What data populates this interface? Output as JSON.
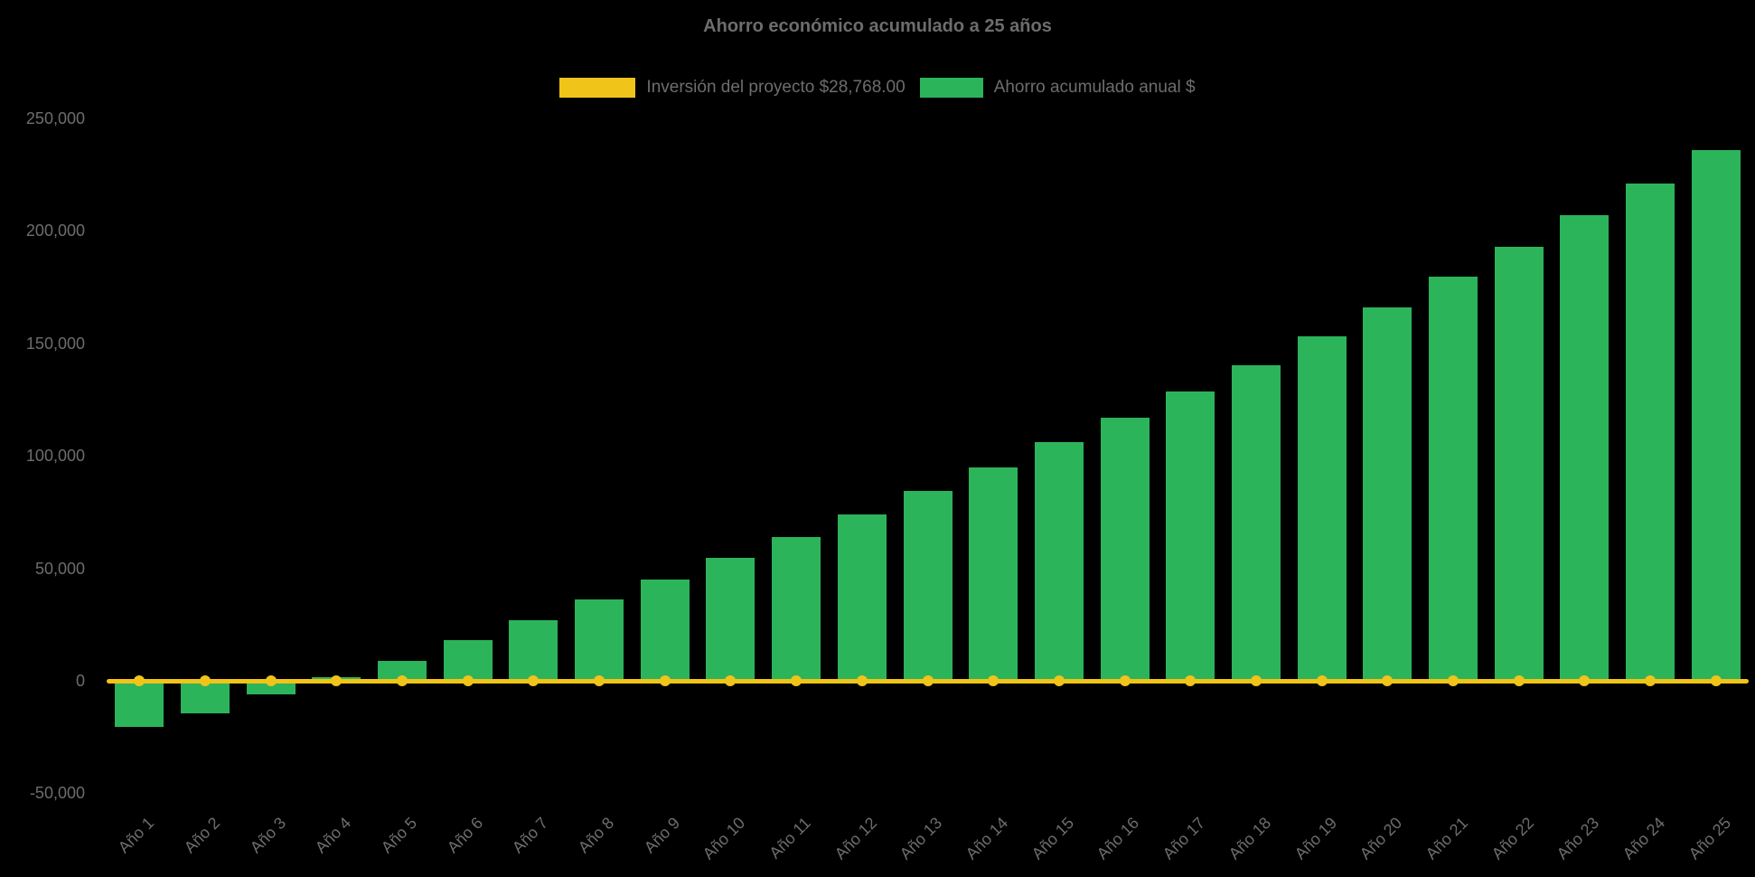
{
  "title": "Ahorro económico acumulado a 25 años",
  "legend": {
    "investment_label": "Inversión del proyecto $28,768.00",
    "savings_label": "Ahorro acumulado anual $"
  },
  "colors": {
    "background": "#000000",
    "bar": "#2CB45B",
    "line": "#F0C419",
    "text": "#6D6D6D"
  },
  "chart_data": {
    "type": "bar",
    "title": "Ahorro económico acumulado a 25 años",
    "xlabel": "",
    "ylabel": "",
    "legend_position": "top",
    "grid": false,
    "ylim": [
      -62000,
      258000
    ],
    "categories": [
      "Año 1",
      "Año 2",
      "Año 3",
      "Año 4",
      "Año 5",
      "Año 6",
      "Año 7",
      "Año 8",
      "Año 9",
      "Año 10",
      "Año 11",
      "Año 12",
      "Año 13",
      "Año 14",
      "Año 15",
      "Año 16",
      "Año 17",
      "Año 18",
      "Año 19",
      "Año 20",
      "Año 21",
      "Año 22",
      "Año 23",
      "Año 24",
      "Año 25"
    ],
    "series": [
      {
        "name": "Inversión del proyecto $28,768.00",
        "type": "line",
        "color": "#F0C419",
        "values": [
          0,
          0,
          0,
          0,
          0,
          0,
          0,
          0,
          0,
          0,
          0,
          0,
          0,
          0,
          0,
          0,
          0,
          0,
          0,
          0,
          0,
          0,
          0,
          0,
          0
        ]
      },
      {
        "name": "Ahorro acumulado anual $",
        "type": "bar",
        "color": "#2CB45B",
        "values": [
          -20500,
          -14500,
          -6000,
          1500,
          9000,
          18000,
          27000,
          36000,
          45000,
          54500,
          64000,
          74000,
          84500,
          95000,
          106000,
          117000,
          128500,
          140000,
          153000,
          166000,
          179500,
          193000,
          207000,
          221000,
          236000
        ]
      }
    ],
    "yticks": [
      {
        "value": 250000,
        "label": "250,000"
      },
      {
        "value": 200000,
        "label": "200,000"
      },
      {
        "value": 150000,
        "label": "150,000"
      },
      {
        "value": 100000,
        "label": "100,000"
      },
      {
        "value": 50000,
        "label": "50,000"
      },
      {
        "value": 0,
        "label": "0"
      },
      {
        "value": -50000,
        "label": "-50,000"
      }
    ]
  }
}
